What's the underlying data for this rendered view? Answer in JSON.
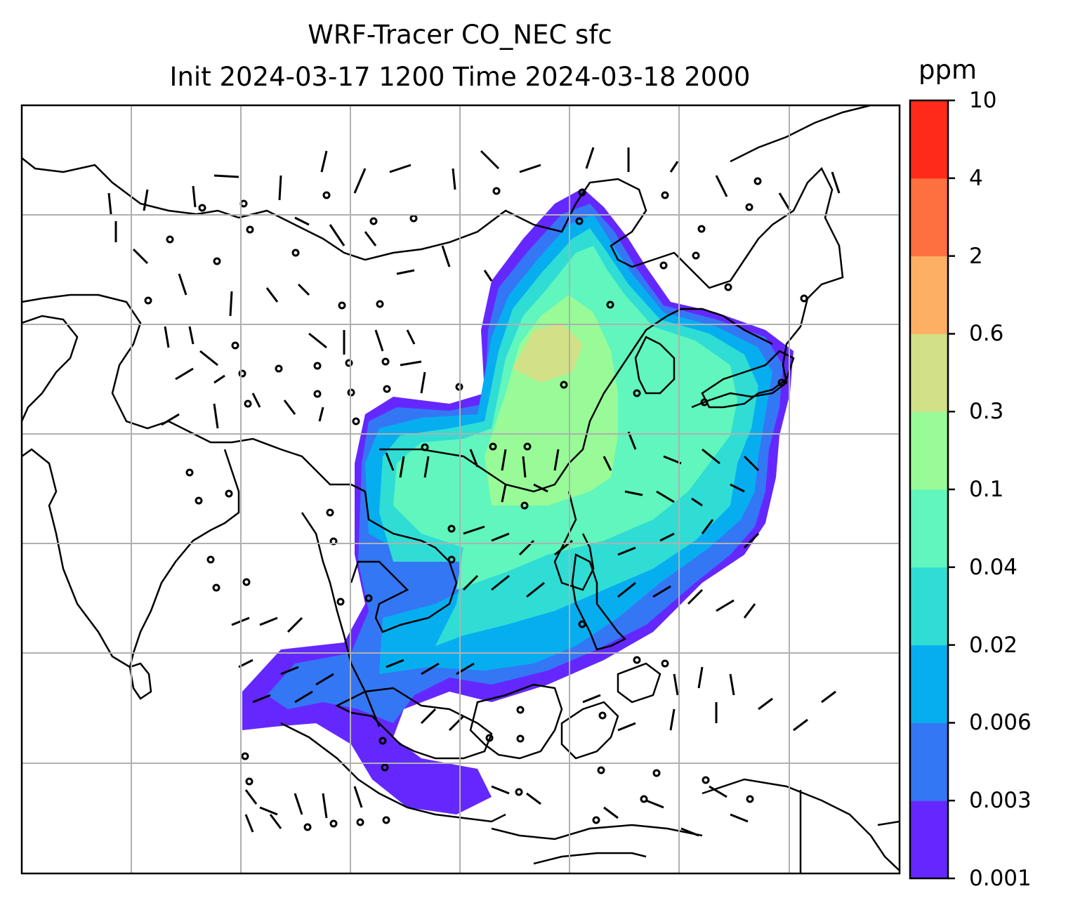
{
  "title": {
    "line1": "WRF-Tracer CO_NEC sfc",
    "line2": "Init 2024-03-17 1200 Time 2024-03-18 2000"
  },
  "colorbar": {
    "unit": "ppm",
    "levels": [
      "0.001",
      "0.003",
      "0.006",
      "0.02",
      "0.04",
      "0.1",
      "0.3",
      "0.6",
      "2",
      "4",
      "10"
    ],
    "colors": [
      "#6428ff",
      "#3477f5",
      "#06aef0",
      "#30ddd4",
      "#60f6bd",
      "#98fb97",
      "#d2e087",
      "#fdb063",
      "#ff7040",
      "#ff2a1a"
    ]
  },
  "map": {
    "gridlines": true,
    "overlay": "wind barbs"
  }
}
